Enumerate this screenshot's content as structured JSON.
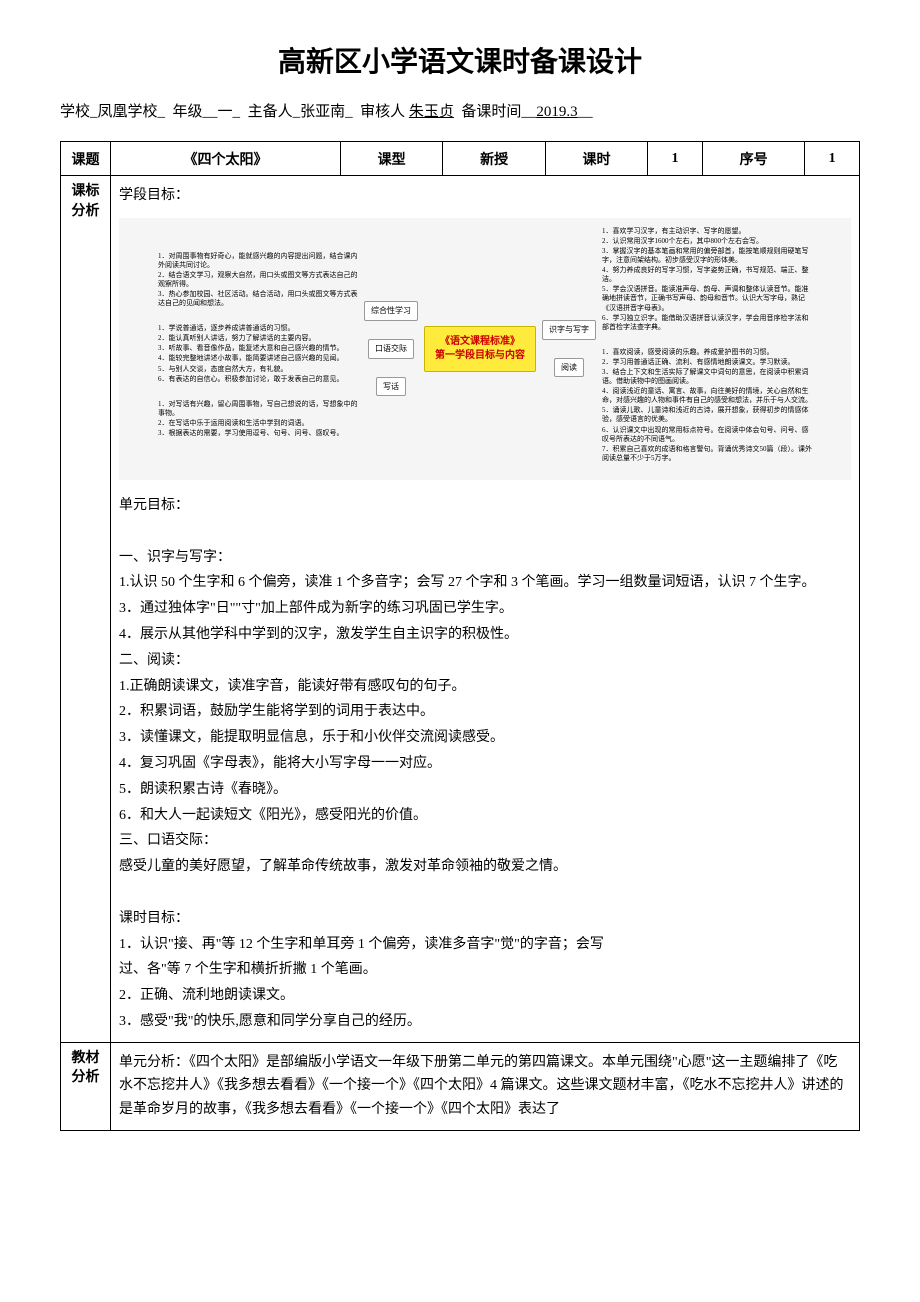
{
  "title": "高新区小学语文课时备课设计",
  "meta": {
    "school_label": "学校",
    "school": "_凤凰学校_",
    "grade_label": "年级",
    "grade": "__一_",
    "preparer_label": "主备人",
    "preparer": "_张亚南_",
    "reviewer_label": "审核人",
    "reviewer": "朱玉贞",
    "date_label": "备课时间",
    "date": "2019.3"
  },
  "header": {
    "topic_label": "课题",
    "topic": "《四个太阳》",
    "type_label": "课型",
    "type": "新授",
    "period_label": "课时",
    "period": "1",
    "seq_label": "序号",
    "seq": "1"
  },
  "mindmap": {
    "center_l1": "《语文课程标准》",
    "center_l2": "第一学段目标与内容",
    "left_nodes": [
      "综合性学习",
      "口语交际",
      "写话"
    ],
    "right_nodes": [
      "识字与写字",
      "阅读"
    ],
    "left_groups": [
      [
        "1．对周围事物有好奇心，能就感兴趣的内容提出问题，结合课内外阅读共同讨论。",
        "2．结合语文学习，观察大自然，用口头或图文等方式表达自己的观察所得。",
        "3．热心参加校园、社区活动。结合活动，用口头或图文等方式表达自己的见闻和想法。"
      ],
      [
        "1．学说普通话，逐步养成讲普通话的习惯。",
        "2．能认真听别人讲话，努力了解讲话的主要内容。",
        "3．听故事、看音像作品，能复述大意和自己感兴趣的情节。",
        "4．能较完整地讲述小故事，能简要讲述自己感兴趣的见闻。",
        "5．与别人交谈，态度自然大方，有礼貌。",
        "6．有表达的自信心。积极参加讨论，敢于发表自己的意见。"
      ],
      [
        "1．对写话有兴趣，留心周围事物，写自己想说的话，写想象中的事物。",
        "2．在写话中乐于运用阅读和生活中学到的词语。",
        "3．根据表达的需要，学习使用逗号、句号、问号、感叹号。"
      ]
    ],
    "right_groups": [
      [
        "1．喜欢学习汉字，有主动识字、写字的愿望。",
        "2．认识常用汉字1600个左右，其中800个左右会写。",
        "3．掌握汉字的基本笔画和常用的偏旁部首，能按笔顺规则用硬笔写字，注意间架结构。初步感受汉字的形体美。",
        "4．努力养成良好的写字习惯，写字姿势正确，书写规范、端正、整洁。",
        "5．学会汉语拼音。能读准声母、韵母、声调和整体认读音节。能准确地拼读音节，正确书写声母、韵母和音节。认识大写字母，熟记《汉语拼音字母表》。",
        "6．学习独立识字。能借助汉语拼音认读汉字，学会用音序检字法和部首检字法查字典。"
      ],
      [
        "1．喜欢阅读，感受阅读的乐趣。养成爱护图书的习惯。",
        "2．学习用普通话正确、流利、有感情地朗读课文。学习默读。",
        "3．结合上下文和生活实际了解课文中词句的意思，在阅读中积累词语。借助读物中的图画阅读。",
        "4．阅读浅近的童话、寓言、故事，向往美好的情境，关心自然和生命，对感兴趣的人物和事件有自己的感受和想法，并乐于与人交流。",
        "5．诵读儿歌、儿童诗和浅近的古诗，展开想象，获得初步的情感体验，感受语言的优美。",
        "6．认识课文中出现的常用标点符号。在阅读中体会句号、问号、感叹号所表达的不同语气。",
        "7．积累自己喜欢的成语和格言警句。背诵优秀诗文50篇（段）。课外阅读总量不少于5万字。"
      ]
    ]
  },
  "sections": {
    "kebiao_label": "课标分析",
    "kebiao": {
      "p1": "学段目标：",
      "p2": "单元目标：",
      "p3": "一、识字与写字：",
      "p4": "1.认识 50 个生字和 6 个偏旁，读准 1 个多音字；会写 27 个字和 3 个笔画。学习一组数量词短语，认识 7 个生字。",
      "p5": "3．通过独体字\"日\"\"寸\"加上部件成为新字的练习巩固已学生字。",
      "p6": "4．展示从其他学科中学到的汉字，激发学生自主识字的积极性。",
      "p7": "二、阅读：",
      "p8": "1.正确朗读课文，读准字音，能读好带有感叹句的句子。",
      "p9": "2．积累词语，鼓励学生能将学到的词用于表达中。",
      "p10": "3．读懂课文，能提取明显信息，乐于和小伙伴交流阅读感受。",
      "p11": "4．复习巩固《字母表》，能将大小写字母一一对应。",
      "p12": "5．朗读积累古诗《春晓》。",
      "p13": "6．和大人一起读短文《阳光》，感受阳光的价值。",
      "p14": "三、口语交际：",
      "p15": "感受儿童的美好愿望，了解革命传统故事，激发对革命领袖的敬爱之情。",
      "p16": "课时目标：",
      "p17": "1．认识\"接、再\"等 12 个生字和单耳旁 1 个偏旁，读准多音字\"觉\"的字音；会写",
      "p18": "过、各\"等 7 个生字和横折折撇 1 个笔画。",
      "p19": "2．正确、流利地朗读课文。",
      "p20": "3．感受\"我\"的快乐,愿意和同学分享自己的经历。"
    },
    "jiaocai_label": "教材分析",
    "jiaocai": {
      "p1": "单元分析：《四个太阳》是部编版小学语文一年级下册第二单元的第四篇课文。本单元围绕\"心愿\"这一主题编排了《吃水不忘挖井人》《我多想去看看》《一个接一个》《四个太阳》4 篇课文。这些课文题材丰富，《吃水不忘挖井人》讲述的是革命岁月的故事，《我多想去看看》《一个接一个》《四个太阳》表达了"
    }
  }
}
